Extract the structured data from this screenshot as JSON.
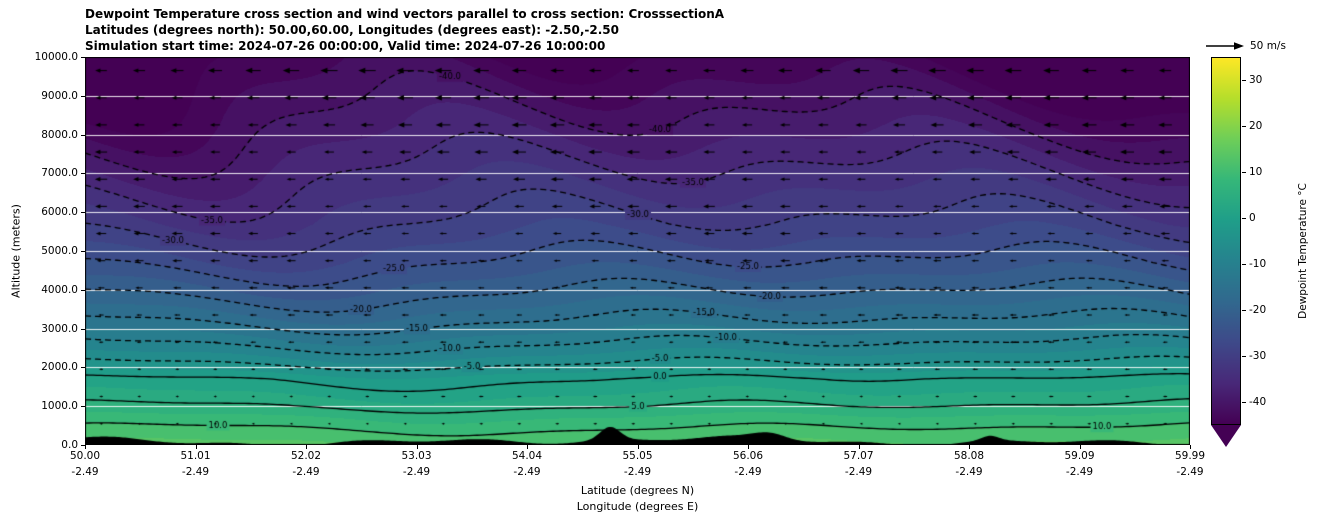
{
  "chart_data": {
    "type": "heatmap",
    "subtype": "filled-contour-cross-section-with-wind-vectors",
    "title_lines": [
      "Dewpoint Temperature cross section and wind vectors parallel to cross section: CrosssectionA",
      "Latitudes (degrees north): 50.00,60.00, Longitudes (degrees east): -2.50,-2.50",
      "Simulation start time: 2024-07-26 00:00:00, Valid time: 2024-07-26 10:00:00"
    ],
    "y_axis": {
      "label": "Altitude (meters)",
      "tick_labels": [
        "0.0",
        "1000.0",
        "2000.0",
        "3000.0",
        "4000.0",
        "5000.0",
        "6000.0",
        "7000.0",
        "8000.0",
        "9000.0",
        "10000.0"
      ],
      "range_m": [
        0,
        10000
      ]
    },
    "x_axis": {
      "label_line1": "Latitude (degrees N)",
      "label_line2": "Longitude (degrees E)",
      "lat_ticks": [
        "50.00",
        "51.01",
        "52.02",
        "53.03",
        "54.04",
        "55.05",
        "56.06",
        "57.07",
        "58.08",
        "59.09",
        "59.99"
      ],
      "lon_ticks": [
        "-2.49",
        "-2.49",
        "-2.49",
        "-2.49",
        "-2.49",
        "-2.49",
        "-2.49",
        "-2.49",
        "-2.49",
        "-2.49",
        "-2.49"
      ]
    },
    "colorbar": {
      "label": "Dewpoint Temperature °C",
      "tick_labels": [
        "30",
        "20",
        "10",
        "0",
        "-10",
        "-20",
        "-30",
        "-40"
      ],
      "tick_values": [
        30,
        20,
        10,
        0,
        -10,
        -20,
        -30,
        -40
      ],
      "vmin": -45,
      "vmax": 35,
      "extend": "min",
      "colors": [
        "#440154",
        "#482878",
        "#3e4989",
        "#31688e",
        "#26828e",
        "#1f9e89",
        "#35b779",
        "#6ece58",
        "#b5de2b",
        "#fde725"
      ]
    },
    "wind": {
      "reference_label": "50 m/s",
      "reference_speed_ms": 50,
      "direction": "arrows point toward decreasing latitude (leftward)",
      "speed_top_ms": 30,
      "speed_surface_ms": 5,
      "row_spacing_m": 700,
      "top_row_altitude_m": 9650,
      "rows": 14
    },
    "contours": {
      "dashed_levels": [
        -40,
        -35,
        -30,
        -25,
        -20,
        -15,
        -10,
        -5
      ],
      "solid_levels": [
        0,
        5,
        10
      ],
      "label_interval": 5,
      "fill_interval": 2.5
    },
    "contour_labels": [
      {
        "level": -40,
        "x": [
          0.33,
          0.52
        ]
      },
      {
        "level": -35,
        "x": [
          0.115,
          0.55
        ]
      },
      {
        "level": -30,
        "x": [
          0.08,
          0.5
        ]
      },
      {
        "level": -25,
        "x": [
          0.28,
          0.6
        ]
      },
      {
        "level": -20,
        "x": [
          0.25,
          0.62
        ]
      },
      {
        "level": -15,
        "x": [
          0.3,
          0.56
        ]
      },
      {
        "level": -10,
        "x": [
          0.33,
          0.58
        ]
      },
      {
        "level": -5,
        "x": [
          0.35,
          0.52
        ]
      },
      {
        "level": 0,
        "x": [
          0.52
        ]
      },
      {
        "level": 5,
        "x": [
          0.5
        ]
      },
      {
        "level": 10,
        "x": [
          0.12,
          0.92
        ]
      }
    ],
    "dewpoint_profile": {
      "altitude_m": [
        0,
        300,
        700,
        1000,
        1400,
        1700,
        2100,
        2600,
        3200,
        3900,
        4700,
        5700,
        7000,
        8300,
        10000
      ],
      "dewpoint_c": [
        13,
        11,
        8,
        5,
        2,
        0,
        -5,
        -10,
        -15,
        -20,
        -25,
        -30,
        -35,
        -40,
        -46
      ]
    },
    "terrain": {
      "color": "#000000",
      "max_height_m": 620,
      "typical_height_m": 180
    },
    "gridlines": {
      "color": "#ffffff",
      "interval_m": 1000
    }
  }
}
